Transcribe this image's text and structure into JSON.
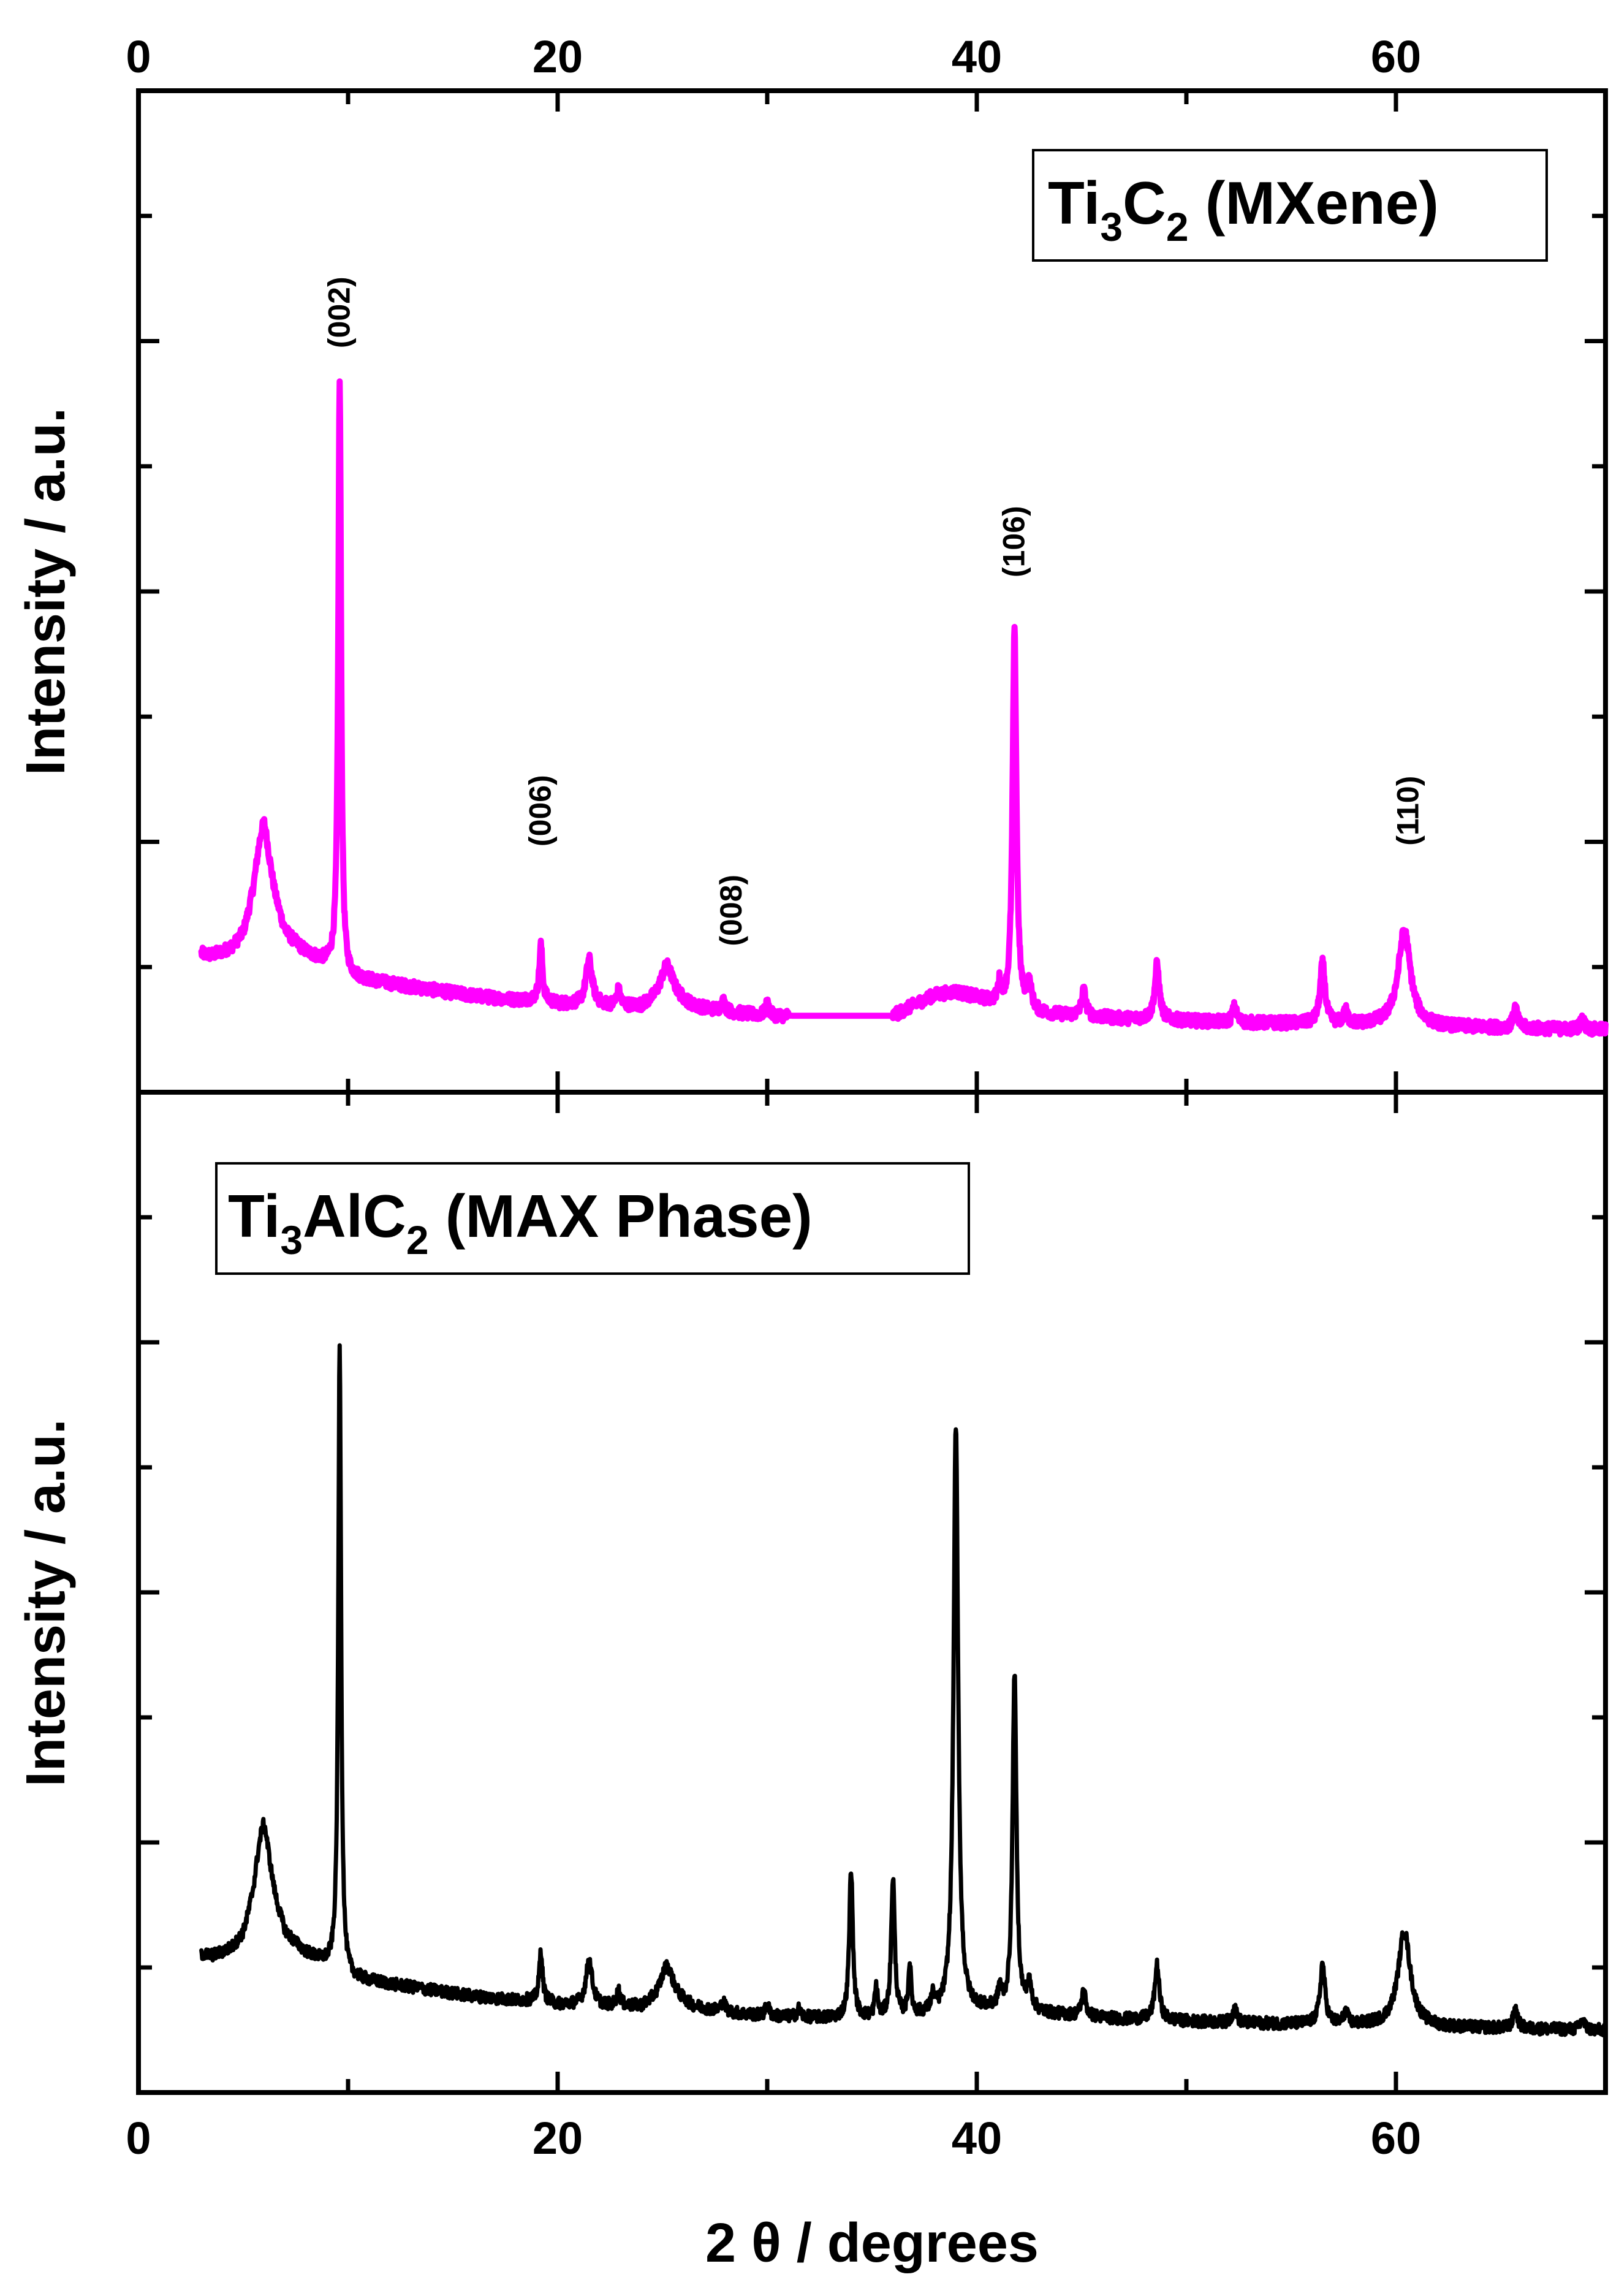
{
  "chart_data": [
    {
      "type": "line",
      "panel": "top",
      "legend": {
        "main": "Ti",
        "sub1": "3",
        "mid": "C",
        "sub2": "2",
        "tail": " (MXene)",
        "placement": "top-right"
      },
      "xlabel": "2 θ / degrees",
      "ylabel": "Intensity / a.u.",
      "xlim": [
        0,
        70
      ],
      "ylim": [
        0,
        100
      ],
      "xticks": [
        "0",
        "20",
        "40",
        "60"
      ],
      "y_ticks_labeled": false,
      "line_color": "#ff00ff",
      "baseline": {
        "x": [
          3,
          3.5,
          4,
          4.5,
          5,
          5.5,
          6,
          6.5,
          7,
          8,
          9,
          9.4,
          9.7,
          10,
          12,
          14,
          16,
          18,
          19.2,
          20,
          21.5,
          22.5,
          23,
          24,
          25.3,
          26.5,
          28,
          30,
          36,
          37,
          38,
          39,
          40,
          41,
          41.5,
          42.5,
          45,
          47,
          48,
          50,
          53,
          56,
          58,
          60,
          62,
          65,
          70
        ],
        "y": [
          13.5,
          13.3,
          13.5,
          13.8,
          14.5,
          17,
          21,
          17.5,
          15,
          13.5,
          12.5,
          12.3,
          11.5,
          11.2,
          10.6,
          10.0,
          9.4,
          9.0,
          9.0,
          8.6,
          8.5,
          8.4,
          8.4,
          8.3,
          9.5,
          8.3,
          7.8,
          7.4,
          7.4,
          8.5,
          9.5,
          9.8,
          9.2,
          8.5,
          8.0,
          7.6,
          7.4,
          7.1,
          7.1,
          6.9,
          6.7,
          6.6,
          6.5,
          6.5,
          6.3,
          6.2,
          6.0
        ]
      },
      "peaks": [
        {
          "x": 5.9,
          "h": 6,
          "w": 0.5
        },
        {
          "x": 9.6,
          "h": 59,
          "w": 0.08
        },
        {
          "x": 19.2,
          "h": 5.5,
          "w": 0.09
        },
        {
          "x": 21.5,
          "h": 4.5,
          "w": 0.18
        },
        {
          "x": 22.9,
          "h": 1.5,
          "w": 0.1
        },
        {
          "x": 25.2,
          "h": 3,
          "w": 0.35
        },
        {
          "x": 27.9,
          "h": 1,
          "w": 0.12
        },
        {
          "x": 30.0,
          "h": 1.2,
          "w": 0.1
        },
        {
          "x": 41.1,
          "h": 2,
          "w": 0.1
        },
        {
          "x": 41.8,
          "h": 38,
          "w": 0.11
        },
        {
          "x": 42.5,
          "h": 2.5,
          "w": 0.15
        },
        {
          "x": 45.1,
          "h": 2.5,
          "w": 0.12
        },
        {
          "x": 48.6,
          "h": 5.5,
          "w": 0.13
        },
        {
          "x": 52.3,
          "h": 1.5,
          "w": 0.12
        },
        {
          "x": 56.5,
          "h": 6,
          "w": 0.14
        },
        {
          "x": 57.6,
          "h": 1.2,
          "w": 0.12
        },
        {
          "x": 60.4,
          "h": 9.5,
          "w": 0.35
        },
        {
          "x": 65.7,
          "h": 2,
          "w": 0.12
        },
        {
          "x": 68.9,
          "h": 1,
          "w": 0.12
        }
      ],
      "peak_labels": [
        {
          "text": "(002)",
          "x": 9.6,
          "y": 78
        },
        {
          "text": "(006)",
          "x": 19.2,
          "y": 28
        },
        {
          "text": "(008)",
          "x": 28.3,
          "y": 18
        },
        {
          "text": "(106)",
          "x": 41.8,
          "y": 55
        },
        {
          "text": "(110)",
          "x": 60.6,
          "y": 28
        }
      ]
    },
    {
      "type": "line",
      "panel": "bottom",
      "legend": {
        "main": "Ti",
        "sub1": "3",
        "mid": "AlC",
        "sub2": "2",
        "tail": " (MAX Phase)",
        "placement": "top-left"
      },
      "xlabel": "2 θ / degrees",
      "ylabel": "Intensity / a.u.",
      "xlim": [
        0,
        70
      ],
      "ylim": [
        0,
        100
      ],
      "xticks": [
        "0",
        "20",
        "40",
        "60"
      ],
      "y_ticks_labeled": false,
      "line_color": "#000000",
      "baseline": {
        "x": [
          3,
          3.5,
          4,
          4.5,
          5,
          5.5,
          6,
          6.5,
          7,
          8,
          9,
          9.4,
          9.7,
          10,
          12,
          14,
          16,
          18,
          19.2,
          20,
          21.5,
          22.5,
          23,
          24,
          25.3,
          26.5,
          28,
          30,
          33,
          36,
          38,
          40,
          42,
          45,
          47,
          48,
          50,
          53,
          56,
          58,
          60,
          62,
          65,
          70
        ],
        "y": [
          13.5,
          13.3,
          13.5,
          13.8,
          14.5,
          17,
          21,
          17.5,
          15,
          13.5,
          12.5,
          12.3,
          11.5,
          11.2,
          10.6,
          10.0,
          9.4,
          9.0,
          9.0,
          8.6,
          8.5,
          8.4,
          8.4,
          8.3,
          9.5,
          8.3,
          7.8,
          7.4,
          7.2,
          7.2,
          7.6,
          8.0,
          7.8,
          7.4,
          7.1,
          7.1,
          6.9,
          6.7,
          6.6,
          6.5,
          6.5,
          6.3,
          6.2,
          6.0
        ]
      },
      "peaks": [
        {
          "x": 5.9,
          "h": 6,
          "w": 0.5
        },
        {
          "x": 9.6,
          "h": 63,
          "w": 0.08
        },
        {
          "x": 19.2,
          "h": 5,
          "w": 0.09
        },
        {
          "x": 21.5,
          "h": 4.5,
          "w": 0.18
        },
        {
          "x": 22.9,
          "h": 1.5,
          "w": 0.1
        },
        {
          "x": 25.2,
          "h": 3,
          "w": 0.35
        },
        {
          "x": 27.9,
          "h": 1,
          "w": 0.12
        },
        {
          "x": 30.0,
          "h": 1.2,
          "w": 0.1
        },
        {
          "x": 31.5,
          "h": 0.8,
          "w": 0.1
        },
        {
          "x": 34.0,
          "h": 15,
          "w": 0.1
        },
        {
          "x": 35.2,
          "h": 3,
          "w": 0.08
        },
        {
          "x": 36.0,
          "h": 14,
          "w": 0.1
        },
        {
          "x": 36.8,
          "h": 5,
          "w": 0.08
        },
        {
          "x": 37.9,
          "h": 1.5,
          "w": 0.1
        },
        {
          "x": 39.0,
          "h": 59,
          "w": 0.13
        },
        {
          "x": 41.1,
          "h": 2,
          "w": 0.1
        },
        {
          "x": 41.8,
          "h": 34,
          "w": 0.11
        },
        {
          "x": 42.5,
          "h": 2.5,
          "w": 0.15
        },
        {
          "x": 45.1,
          "h": 2.5,
          "w": 0.12
        },
        {
          "x": 48.6,
          "h": 5.5,
          "w": 0.13
        },
        {
          "x": 52.3,
          "h": 1.5,
          "w": 0.12
        },
        {
          "x": 56.5,
          "h": 6,
          "w": 0.14
        },
        {
          "x": 57.6,
          "h": 1.2,
          "w": 0.12
        },
        {
          "x": 60.4,
          "h": 9.5,
          "w": 0.35
        },
        {
          "x": 65.7,
          "h": 2,
          "w": 0.12
        },
        {
          "x": 68.9,
          "h": 1,
          "w": 0.12
        }
      ],
      "peak_labels": []
    }
  ]
}
